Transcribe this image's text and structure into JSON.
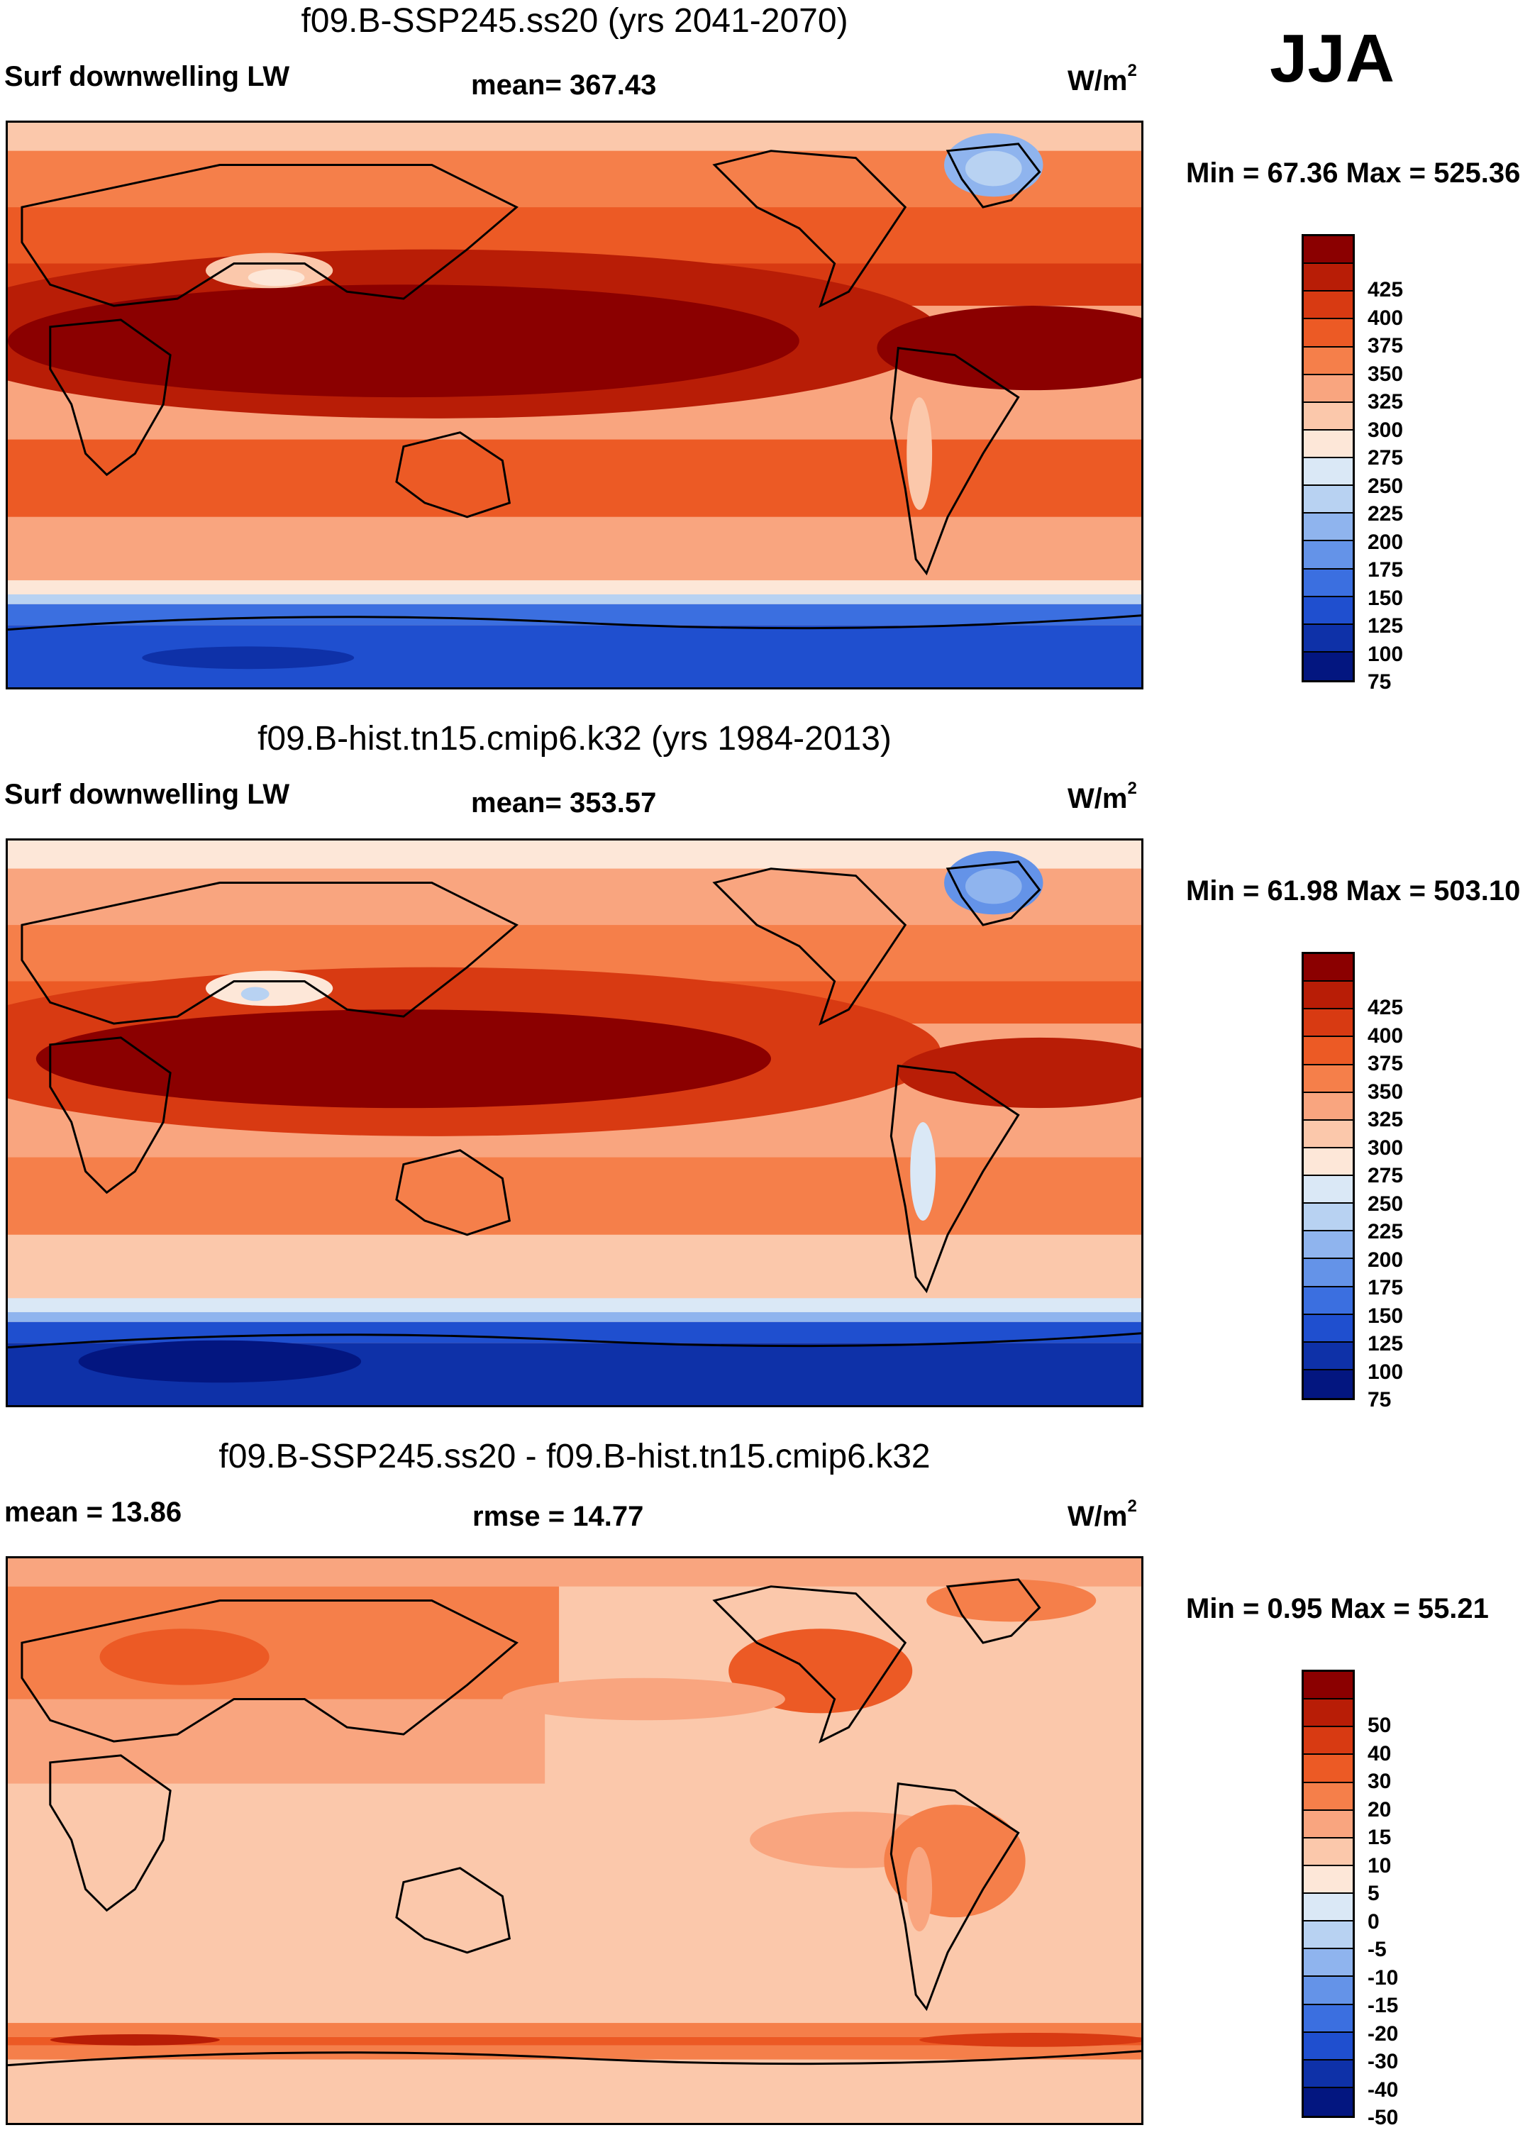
{
  "season": "JJA",
  "panels": [
    {
      "title": "f09.B-SSP245.ss20 (yrs 2041-2070)",
      "left_label": "Surf downwelling LW",
      "mean": "mean= 367.43",
      "units": "W/m",
      "units_sup": "2",
      "minmax": "Min =  67.36 Max = 525.36",
      "colorbar": {
        "colors": [
          "#8b0000",
          "#b81d06",
          "#d83a12",
          "#ec5a25",
          "#f57f4a",
          "#f9a57f",
          "#fbc8ab",
          "#fde7d8",
          "#dae8f6",
          "#b8d2f2",
          "#8fb4ee",
          "#6493e8",
          "#3b6fe0",
          "#1f4fcf",
          "#0e31a8",
          "#031680"
        ],
        "labels": [
          "425",
          "400",
          "375",
          "350",
          "325",
          "300",
          "275",
          "250",
          "225",
          "200",
          "175",
          "150",
          "125",
          "100",
          "75"
        ]
      }
    },
    {
      "title": "f09.B-hist.tn15.cmip6.k32 (yrs 1984-2013)",
      "left_label": "Surf downwelling LW",
      "mean": "mean= 353.57",
      "units": "W/m",
      "units_sup": "2",
      "minmax": "Min =  61.98 Max = 503.10",
      "colorbar": {
        "colors": [
          "#8b0000",
          "#b81d06",
          "#d83a12",
          "#ec5a25",
          "#f57f4a",
          "#f9a57f",
          "#fbc8ab",
          "#fde7d8",
          "#dae8f6",
          "#b8d2f2",
          "#8fb4ee",
          "#6493e8",
          "#3b6fe0",
          "#1f4fcf",
          "#0e31a8",
          "#031680"
        ],
        "labels": [
          "425",
          "400",
          "375",
          "350",
          "325",
          "300",
          "275",
          "250",
          "225",
          "200",
          "175",
          "150",
          "125",
          "100",
          "75"
        ]
      }
    },
    {
      "title": "f09.B-SSP245.ss20 - f09.B-hist.tn15.cmip6.k32",
      "left_label": "mean =  13.86",
      "rmse": "rmse =  14.77",
      "units": "W/m",
      "units_sup": "2",
      "minmax": "Min =   0.95 Max =  55.21",
      "colorbar": {
        "colors": [
          "#8b0000",
          "#b81d06",
          "#d83a12",
          "#ec5a25",
          "#f57f4a",
          "#f9a57f",
          "#fbc8ab",
          "#fde7d8",
          "#dae8f6",
          "#b8d2f2",
          "#8fb4ee",
          "#6493e8",
          "#3b6fe0",
          "#1f4fcf",
          "#0e31a8",
          "#031680"
        ],
        "labels": [
          "50",
          "40",
          "30",
          "20",
          "15",
          "10",
          "5",
          "0",
          "-5",
          "-10",
          "-15",
          "-20",
          "-30",
          "-40",
          "-50"
        ]
      }
    }
  ]
}
